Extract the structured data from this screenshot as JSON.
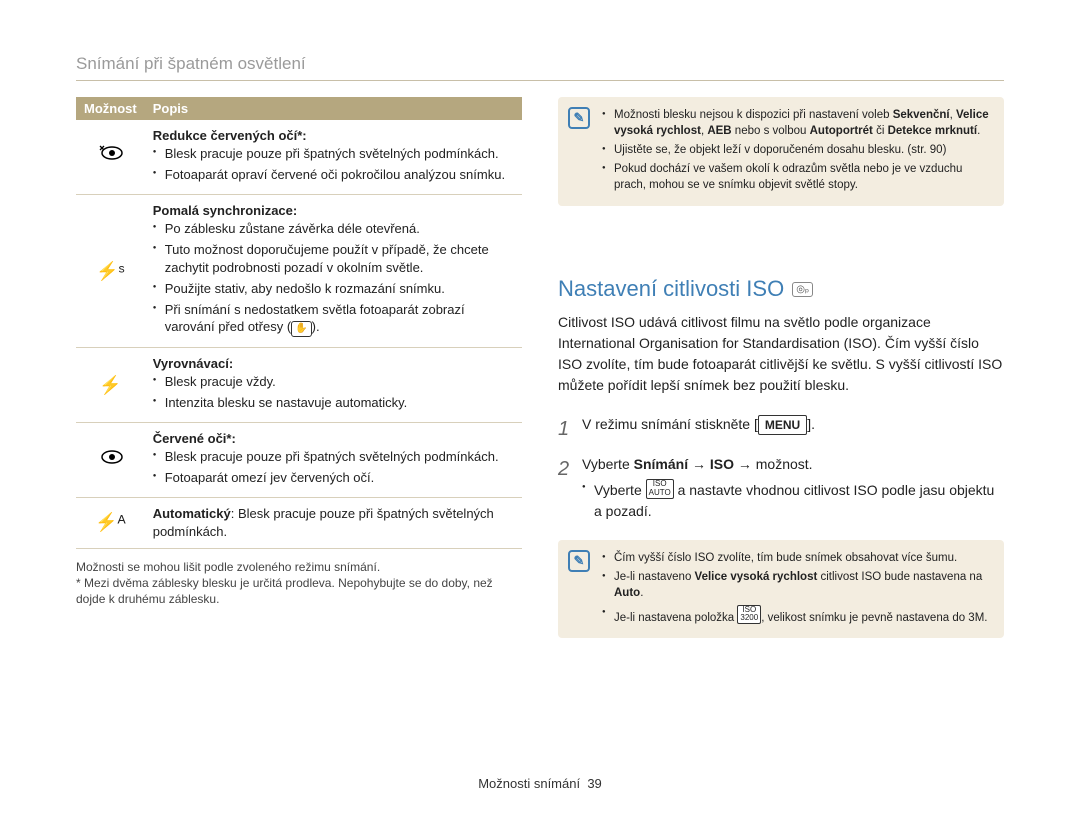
{
  "header": "Snímání při špatném osvětlení",
  "table": {
    "col_option": "Možnost",
    "col_desc": "Popis",
    "rows": [
      {
        "icon_svg": "eye-flash",
        "title": "Redukce červených očí*:",
        "items": [
          "Blesk pracuje pouze při špatných světelných podmínkách.",
          "Fotoaparát opraví červené oči pokročilou analýzou snímku."
        ]
      },
      {
        "icon_text": "⚡ˢ",
        "title": "Pomalá synchronizace:",
        "items": [
          "Po záblesku zůstane závěrka déle otevřená.",
          "Tuto možnost doporučujeme použít v případě, že chcete zachytit podrobnosti pozadí v okolním světle.",
          "Použijte stativ, aby nedošlo k rozmazání snímku.",
          "Při snímání s nedostatkem světla fotoaparát zobrazí varování před otřesy (__SHAKE__)."
        ]
      },
      {
        "icon_text": "⚡",
        "title": "Vyrovnávací:",
        "items": [
          "Blesk pracuje vždy.",
          "Intenzita blesku se nastavuje automaticky."
        ]
      },
      {
        "icon_svg": "eye",
        "title": "Červené oči*:",
        "items": [
          "Blesk pracuje pouze při špatných světelných podmínkách.",
          "Fotoaparát omezí jev červených očí."
        ]
      },
      {
        "icon_text": "⚡ᴬ",
        "inline_title": "Automatický",
        "inline_text": ": Blesk pracuje pouze při špatných světelných podmínkách."
      }
    ]
  },
  "footnotes": [
    "Možnosti se mohou lišit podle zvoleného režimu snímání.",
    "* Mezi dvěma záblesky blesku je určitá prodleva. Nepohybujte se do doby, než dojde k druhému záblesku."
  ],
  "info1": {
    "items": [
      {
        "pre": "Možnosti blesku nejsou k dispozici při nastavení voleb ",
        "bold1": "Sekvenční",
        "mid1": ", ",
        "bold2": "Velice vysoká rychlost",
        "mid2": ", ",
        "bold3": "AEB",
        "mid3": " nebo s volbou ",
        "bold4": "Autoportrét",
        "mid4": " či ",
        "bold5": "Detekce mrknutí",
        "post": "."
      },
      {
        "text": "Ujistěte se, že objekt leží v doporučeném dosahu blesku. (str. 90)"
      },
      {
        "text": "Pokud dochází ve vašem okolí k odrazům světla nebo je ve vzduchu prach, mohou se ve snímku objevit světlé stopy."
      }
    ]
  },
  "iso": {
    "title": "Nastavení citlivosti ISO",
    "mode_badge": "◎ₚ",
    "desc": "Citlivost ISO udává citlivost filmu na světlo podle organizace International Organisation for Standardisation (ISO). Čím vyšší číslo ISO zvolíte, tím bude fotoaparát citlivější ke světlu. S vyšší citlivostí ISO můžete pořídit lepší snímek bez použití blesku.",
    "step1_pre": "V režimu snímání stiskněte [",
    "step1_menu": "MENU",
    "step1_post": "].",
    "step2_pre": "Vyberte ",
    "step2_bold": "Snímání → ISO →",
    "step2_post": " možnost.",
    "step2_sub_pre": "Vyberte ",
    "step2_sub_iso": "ISO AUTO",
    "step2_sub_post": " a nastavte vhodnou citlivost ISO podle jasu objektu a pozadí."
  },
  "info2": {
    "items": [
      {
        "text": "Čím vyšší číslo ISO zvolíte, tím bude snímek obsahovat více šumu."
      },
      {
        "pre": "Je-li nastaveno ",
        "bold": "Velice vysoká rychlost",
        "mid": " citlivost ISO bude nastavena na ",
        "bold2": "Auto",
        "post": "."
      },
      {
        "pre": "Je-li nastavena položka ",
        "iso": "ISO 3200",
        "post": ", velikost snímku je pevně nastavena do 3M."
      }
    ]
  },
  "footer": {
    "label": "Možnosti snímání",
    "page": "39"
  }
}
